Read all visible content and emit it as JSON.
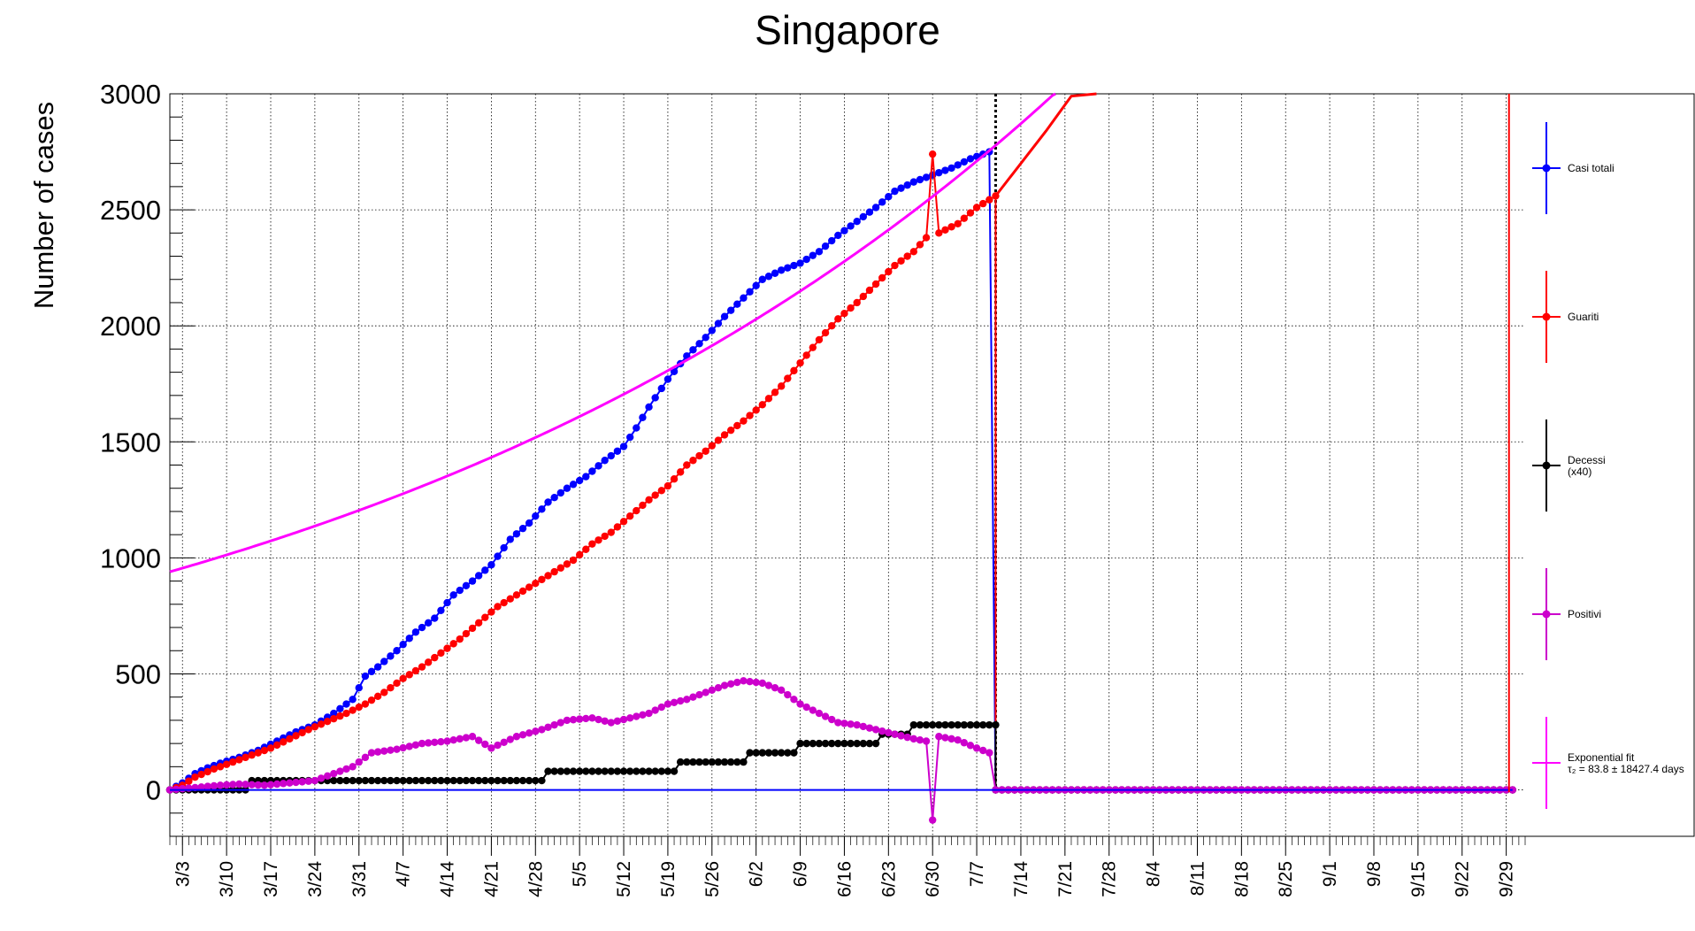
{
  "chart_data": {
    "type": "line",
    "title": "Singapore",
    "ylabel": "Number of cases",
    "xlabel": "",
    "ylim": [
      -200,
      3000
    ],
    "y_ticks": [
      0,
      500,
      1000,
      1500,
      2000,
      2500,
      3000
    ],
    "x_start_date": "2020-03-01",
    "x_range_days": [
      0,
      215
    ],
    "x_tick_labels": [
      "3/3",
      "3/10",
      "3/17",
      "3/24",
      "3/31",
      "4/7",
      "4/14",
      "4/21",
      "4/28",
      "5/5",
      "5/12",
      "5/19",
      "5/26",
      "6/2",
      "6/9",
      "6/16",
      "6/23",
      "6/30",
      "7/7",
      "7/14",
      "7/21",
      "7/28",
      "8/4",
      "8/11",
      "8/18",
      "8/25",
      "9/1",
      "9/8",
      "9/15",
      "9/22",
      "9/29"
    ],
    "grid": true,
    "legend_position": "right",
    "annotations": [
      "dotted vertical line at 7/10"
    ],
    "series": [
      {
        "name": "Casi totali",
        "color": "#0000ff",
        "points": [
          [
            "3/1",
            0
          ],
          [
            "3/3",
            30
          ],
          [
            "3/5",
            70
          ],
          [
            "3/7",
            95
          ],
          [
            "3/9",
            115
          ],
          [
            "3/12",
            140
          ],
          [
            "3/15",
            170
          ],
          [
            "3/18",
            210
          ],
          [
            "3/21",
            250
          ],
          [
            "3/24",
            280
          ],
          [
            "3/27",
            330
          ],
          [
            "3/30",
            390
          ],
          [
            "4/1",
            490
          ],
          [
            "4/3",
            530
          ],
          [
            "4/6",
            600
          ],
          [
            "4/9",
            680
          ],
          [
            "4/12",
            740
          ],
          [
            "4/15",
            840
          ],
          [
            "4/18",
            900
          ],
          [
            "4/21",
            970
          ],
          [
            "4/24",
            1080
          ],
          [
            "4/27",
            1150
          ],
          [
            "4/30",
            1240
          ],
          [
            "5/3",
            1300
          ],
          [
            "5/6",
            1350
          ],
          [
            "5/9",
            1420
          ],
          [
            "5/12",
            1480
          ],
          [
            "5/14",
            1560
          ],
          [
            "5/16",
            1650
          ],
          [
            "5/19",
            1770
          ],
          [
            "5/22",
            1870
          ],
          [
            "5/25",
            1950
          ],
          [
            "5/28",
            2040
          ],
          [
            "5/31",
            2120
          ],
          [
            "6/3",
            2200
          ],
          [
            "6/6",
            2240
          ],
          [
            "6/9",
            2270
          ],
          [
            "6/12",
            2320
          ],
          [
            "6/15",
            2390
          ],
          [
            "6/18",
            2450
          ],
          [
            "6/21",
            2510
          ],
          [
            "6/24",
            2580
          ],
          [
            "6/27",
            2620
          ],
          [
            "6/30",
            2650
          ],
          [
            "7/3",
            2680
          ],
          [
            "7/6",
            2720
          ],
          [
            "7/9",
            2750
          ],
          [
            "7/10",
            0
          ],
          [
            "9/30",
            0
          ]
        ]
      },
      {
        "name": "Guariti",
        "color": "#ff0000",
        "points": [
          [
            "3/1",
            0
          ],
          [
            "3/3",
            20
          ],
          [
            "3/5",
            55
          ],
          [
            "3/8",
            90
          ],
          [
            "3/11",
            120
          ],
          [
            "3/14",
            150
          ],
          [
            "3/17",
            180
          ],
          [
            "3/20",
            220
          ],
          [
            "3/23",
            260
          ],
          [
            "3/26",
            295
          ],
          [
            "3/29",
            330
          ],
          [
            "4/1",
            370
          ],
          [
            "4/4",
            420
          ],
          [
            "4/7",
            480
          ],
          [
            "4/10",
            530
          ],
          [
            "4/13",
            590
          ],
          [
            "4/16",
            650
          ],
          [
            "4/19",
            720
          ],
          [
            "4/22",
            790
          ],
          [
            "4/25",
            840
          ],
          [
            "4/28",
            890
          ],
          [
            "5/1",
            940
          ],
          [
            "5/4",
            990
          ],
          [
            "5/7",
            1060
          ],
          [
            "5/10",
            1110
          ],
          [
            "5/13",
            1180
          ],
          [
            "5/16",
            1250
          ],
          [
            "5/19",
            1310
          ],
          [
            "5/22",
            1400
          ],
          [
            "5/25",
            1460
          ],
          [
            "5/28",
            1530
          ],
          [
            "5/31",
            1590
          ],
          [
            "6/3",
            1660
          ],
          [
            "6/6",
            1740
          ],
          [
            "6/9",
            1840
          ],
          [
            "6/12",
            1940
          ],
          [
            "6/15",
            2030
          ],
          [
            "6/18",
            2100
          ],
          [
            "6/21",
            2180
          ],
          [
            "6/24",
            2260
          ],
          [
            "6/27",
            2320
          ],
          [
            "6/29",
            2380
          ],
          [
            "6/30",
            2740
          ],
          [
            "7/1",
            2400
          ],
          [
            "7/4",
            2440
          ],
          [
            "7/7",
            2510
          ],
          [
            "7/10",
            2560
          ],
          [
            "7/10",
            0
          ],
          [
            "9/30",
            0
          ]
        ]
      },
      {
        "name": "Decessi\n(x40)",
        "color": "#000000",
        "points": [
          [
            "3/1",
            0
          ],
          [
            "3/13",
            0
          ],
          [
            "3/14",
            40
          ],
          [
            "4/29",
            40
          ],
          [
            "4/30",
            80
          ],
          [
            "5/20",
            80
          ],
          [
            "5/21",
            120
          ],
          [
            "5/31",
            120
          ],
          [
            "6/1",
            160
          ],
          [
            "6/8",
            160
          ],
          [
            "6/9",
            200
          ],
          [
            "6/21",
            200
          ],
          [
            "6/22",
            240
          ],
          [
            "6/26",
            240
          ],
          [
            "6/27",
            280
          ],
          [
            "7/10",
            280
          ],
          [
            "7/10",
            0
          ],
          [
            "9/30",
            0
          ]
        ]
      },
      {
        "name": "Positivi",
        "color": "#cc00cc",
        "points": [
          [
            "3/1",
            0
          ],
          [
            "3/5",
            10
          ],
          [
            "3/9",
            20
          ],
          [
            "3/12",
            25
          ],
          [
            "3/16",
            20
          ],
          [
            "3/20",
            30
          ],
          [
            "3/24",
            40
          ],
          [
            "3/27",
            70
          ],
          [
            "3/30",
            100
          ],
          [
            "4/2",
            160
          ],
          [
            "4/6",
            175
          ],
          [
            "4/10",
            200
          ],
          [
            "4/14",
            210
          ],
          [
            "4/18",
            230
          ],
          [
            "4/21",
            180
          ],
          [
            "4/25",
            230
          ],
          [
            "4/29",
            260
          ],
          [
            "5/3",
            300
          ],
          [
            "5/7",
            310
          ],
          [
            "5/10",
            290
          ],
          [
            "5/13",
            310
          ],
          [
            "5/16",
            330
          ],
          [
            "5/19",
            370
          ],
          [
            "5/22",
            390
          ],
          [
            "5/25",
            420
          ],
          [
            "5/28",
            450
          ],
          [
            "5/31",
            470
          ],
          [
            "6/3",
            460
          ],
          [
            "6/6",
            430
          ],
          [
            "6/9",
            370
          ],
          [
            "6/12",
            330
          ],
          [
            "6/15",
            290
          ],
          [
            "6/18",
            280
          ],
          [
            "6/21",
            260
          ],
          [
            "6/24",
            240
          ],
          [
            "6/27",
            220
          ],
          [
            "6/29",
            210
          ],
          [
            "6/30",
            -130
          ],
          [
            "7/1",
            230
          ],
          [
            "7/4",
            215
          ],
          [
            "7/7",
            180
          ],
          [
            "7/9",
            160
          ],
          [
            "7/10",
            0
          ],
          [
            "9/30",
            0
          ]
        ]
      },
      {
        "name": "Exponential fit",
        "fit_label": "τ₂ = 83.8  ± 18427.4 days",
        "color": "#ff00ff",
        "model": "exponential",
        "y_at_3/1": 940,
        "doubling_days": 83.8,
        "range": [
          "3/1",
          "7/22"
        ]
      },
      {
        "name": "red fit",
        "color": "#ff0000",
        "legend": false,
        "points": [
          [
            "7/10",
            2560
          ],
          [
            "7/14",
            2700
          ],
          [
            "7/18",
            2840
          ],
          [
            "7/22",
            2990
          ],
          [
            "7/26",
            3100
          ]
        ]
      }
    ],
    "red_spike_right": [
      "9/30",
      -10,
      3000
    ]
  }
}
